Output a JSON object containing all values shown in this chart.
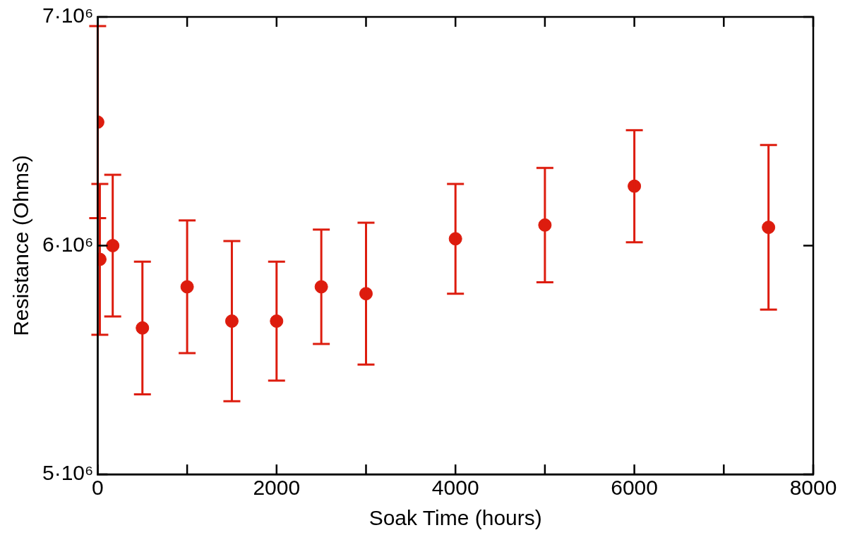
{
  "chart_data": {
    "type": "scatter",
    "xlabel": "Soak Time (hours)",
    "ylabel": "Resistance (Ohms)",
    "x": [
      0,
      24,
      168,
      500,
      1000,
      1500,
      2000,
      2500,
      3000,
      4000,
      5000,
      6000,
      7500
    ],
    "series": [
      {
        "color": "#dd1c0e",
        "values": [
          6540000,
          5940000,
          6000000,
          5640000,
          5820000,
          5670000,
          5670000,
          5820000,
          5790000,
          6030000,
          6090000,
          6260000,
          6080000
        ],
        "errors": [
          420000,
          330000,
          310000,
          290000,
          290000,
          350000,
          260000,
          250000,
          310000,
          240000,
          250000,
          245000,
          360000
        ]
      }
    ],
    "xlim": [
      0,
      8000
    ],
    "xticks": [
      0,
      {
        "value": 1000,
        "label": null
      },
      2000,
      {
        "value": 3000,
        "label": null
      },
      4000,
      {
        "value": 5000,
        "label": null
      },
      6000,
      {
        "value": 7000,
        "label": null
      },
      8000
    ],
    "ylim": [
      5000000,
      7000000
    ],
    "yticks": [
      {
        "value": 5000000,
        "label": "5·10⁶"
      },
      {
        "value": 6000000,
        "label": "6·10⁶"
      },
      {
        "value": 7000000,
        "label": "7·10⁶"
      }
    ],
    "marker": "circle",
    "grid": false,
    "legend": false
  }
}
